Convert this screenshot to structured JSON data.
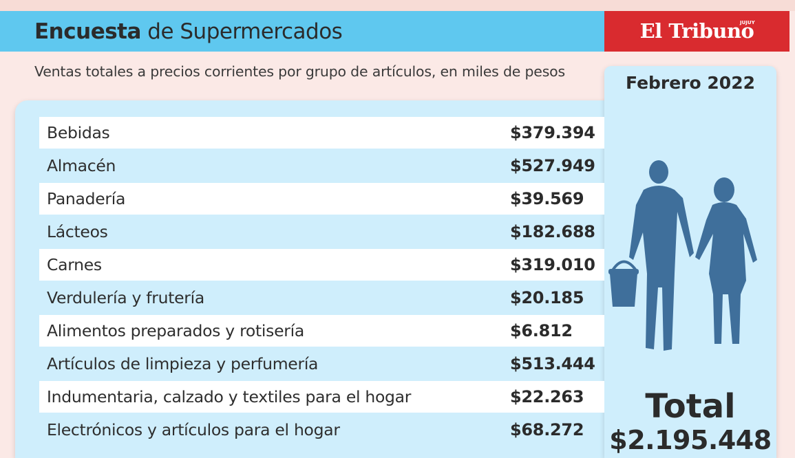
{
  "header": {
    "title_bold": "Encuesta",
    "title_rest": " de Supermercados",
    "brand": "El Tribuno",
    "brand_tag": "JUJUY"
  },
  "subtitle": "Ventas totales a precios corrientes por grupo de artículos, en miles de pesos",
  "period": "Febrero 2022",
  "rows": [
    {
      "label": "Bebidas",
      "value": "$379.394"
    },
    {
      "label": "Almacén",
      "value": "$527.949"
    },
    {
      "label": "Panadería",
      "value": "$39.569"
    },
    {
      "label": "Lácteos",
      "value": "$182.688"
    },
    {
      "label": "Carnes",
      "value": "$319.010"
    },
    {
      "label": "Verdulería y frutería",
      "value": "$20.185"
    },
    {
      "label": "Alimentos preparados y rotisería",
      "value": "$6.812"
    },
    {
      "label": "Artículos de limpieza y perfumería",
      "value": "$513.444"
    },
    {
      "label": "Indumentaria, calzado y textiles para el hogar",
      "value": "$22.263"
    },
    {
      "label": "Electrónicos y artículos para el hogar",
      "value": "$68.272"
    }
  ],
  "total": {
    "label": "Total",
    "value": "$2.195.448"
  },
  "colors": {
    "header_blue": "#5fc8ef",
    "brand_red": "#d92b2f",
    "panel_blue": "#cfeefc",
    "silhouette": "#3f6f9b"
  },
  "icons": [
    "couple-shopping-silhouette-icon"
  ]
}
